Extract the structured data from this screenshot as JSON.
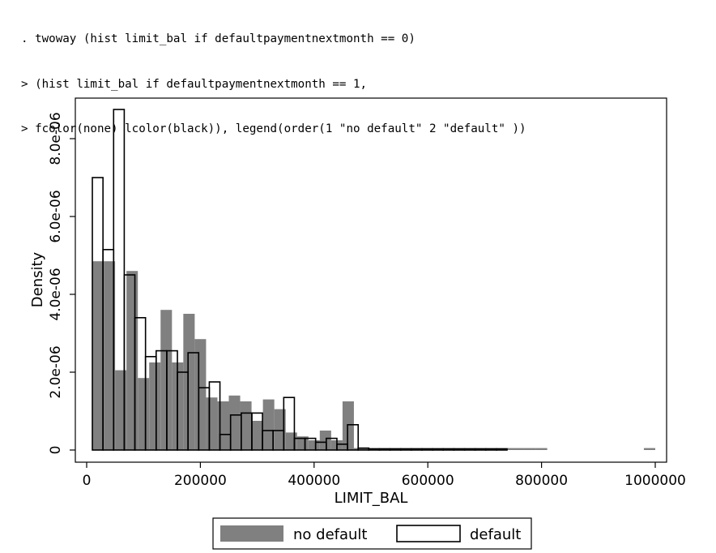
{
  "command_lines": [
    ". twoway (hist limit_bal if defaultpaymentnextmonth == 0)",
    "> (hist limit_bal if defaultpaymentnextmonth == 1,",
    "> fcolor(none) lcolor(black)), legend(order(1 \"no default\" 2 \"default\" ))"
  ],
  "chart_data": {
    "type": "bar",
    "title": "",
    "xlabel": "LIMIT_BAL",
    "ylabel": "Density",
    "xlim": [
      0,
      1000000
    ],
    "ylim": [
      0,
      9e-06
    ],
    "x_ticks": [
      {
        "value": 0,
        "label": "0"
      },
      {
        "value": 200000,
        "label": "200000"
      },
      {
        "value": 400000,
        "label": "400000"
      },
      {
        "value": 600000,
        "label": "600000"
      },
      {
        "value": 800000,
        "label": "800000"
      },
      {
        "value": 1000000,
        "label": "1000000"
      }
    ],
    "y_ticks": [
      {
        "value": 0,
        "label": "0"
      },
      {
        "value": 2e-06,
        "label": "2.0e-06"
      },
      {
        "value": 4e-06,
        "label": "4.0e-06"
      },
      {
        "value": 6e-06,
        "label": "6.0e-06"
      },
      {
        "value": 8e-06,
        "label": "8.0e-06"
      }
    ],
    "grid": false,
    "legend_position": "bottom",
    "series": [
      {
        "name": "no default",
        "style": "filled",
        "color": "#808080",
        "bin_edges": [
          10000,
          30000,
          50000,
          70000,
          90000,
          110000,
          130000,
          150000,
          170000,
          190000,
          210000,
          230000,
          250000,
          270000,
          290000,
          310000,
          330000,
          350000,
          370000,
          390000,
          410000,
          430000,
          450000,
          470000,
          490000,
          510000,
          530000,
          550000,
          570000,
          590000,
          610000,
          630000,
          650000,
          670000,
          690000,
          710000,
          730000,
          750000,
          770000,
          790000,
          810000
        ],
        "values": [
          4.85e-06,
          4.85e-06,
          2.05e-06,
          4.6e-06,
          1.85e-06,
          2.25e-06,
          3.6e-06,
          2.25e-06,
          3.5e-06,
          2.85e-06,
          1.35e-06,
          1.25e-06,
          1.4e-06,
          1.25e-06,
          7.5e-07,
          1.3e-06,
          1.05e-06,
          4.5e-07,
          3.5e-07,
          2.5e-07,
          5e-07,
          2.5e-07,
          1.25e-06,
          5e-08,
          5e-08,
          5e-08,
          5e-08,
          5e-08,
          5e-08,
          5e-08,
          5e-08,
          5e-08,
          5e-08,
          5e-08,
          5e-08,
          5e-08,
          5e-08,
          5e-08,
          5e-08,
          5e-08
        ],
        "outlier_bins": [
          {
            "x0": 980000,
            "x1": 1000000,
            "value": 5e-08
          }
        ]
      },
      {
        "name": "default",
        "style": "outline",
        "color": "#000000",
        "bin_edges": [
          10000,
          28700,
          47400,
          66100,
          84800,
          103500,
          122200,
          140900,
          159600,
          178300,
          197000,
          215700,
          234400,
          253100,
          271800,
          290500,
          309200,
          327900,
          346600,
          365300,
          384000,
          402700,
          421400,
          440100,
          458800,
          477500,
          496200,
          514900,
          533600,
          552300,
          571000,
          589700,
          608400,
          627100,
          645800,
          664500,
          683200,
          701900,
          720600,
          739300
        ],
        "values": [
          7e-06,
          5.15e-06,
          8.75e-06,
          4.5e-06,
          3.4e-06,
          2.4e-06,
          2.55e-06,
          2.55e-06,
          2e-06,
          2.5e-06,
          1.6e-06,
          1.75e-06,
          4e-07,
          9e-07,
          9.5e-07,
          9.5e-07,
          5e-07,
          5e-07,
          1.35e-06,
          3e-07,
          3e-07,
          2e-07,
          3e-07,
          1.5e-07,
          6.5e-07,
          5e-08,
          3e-08,
          3e-08,
          3e-08,
          3e-08,
          3e-08,
          3e-08,
          3e-08,
          3e-08,
          3e-08,
          3e-08,
          3e-08,
          3e-08,
          3e-08
        ]
      }
    ]
  }
}
